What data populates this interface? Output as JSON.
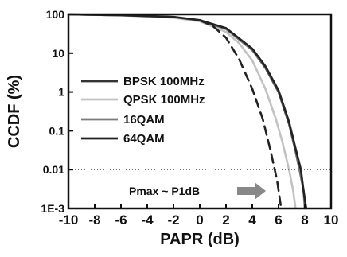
{
  "chart_data": {
    "type": "line",
    "title": "",
    "xlabel": "PAPR (dB)",
    "ylabel": "CCDF (%)",
    "xlim": [
      -10,
      10
    ],
    "ylim": [
      0.001,
      100
    ],
    "yscale": "log",
    "xticks": [
      -10,
      -8,
      -6,
      -4,
      -2,
      0,
      2,
      4,
      6,
      8,
      10
    ],
    "yticks": [
      {
        "value": 100,
        "label": "100"
      },
      {
        "value": 10,
        "label": "10"
      },
      {
        "value": 1,
        "label": "1"
      },
      {
        "value": 0.1,
        "label": "0.1"
      },
      {
        "value": 0.01,
        "label": "0.01"
      },
      {
        "value": 0.001,
        "label": "1E-3"
      }
    ],
    "grid": false,
    "legend_position": "middle-left",
    "series": [
      {
        "name": "BPSK 100MHz",
        "color": "#333333",
        "style": "solid",
        "points": [
          [
            -10,
            100
          ],
          [
            -6,
            95
          ],
          [
            -2,
            85
          ],
          [
            0,
            70
          ],
          [
            2,
            42
          ],
          [
            4,
            12
          ],
          [
            5,
            4.2
          ],
          [
            6,
            1.0
          ],
          [
            6.8,
            0.15
          ],
          [
            7.3,
            0.03
          ],
          [
            7.6,
            0.01
          ],
          [
            7.9,
            0.003
          ],
          [
            8.1,
            0.001
          ]
        ]
      },
      {
        "name": "QPSK 100MHz",
        "color": "#c2c2c2",
        "style": "solid",
        "points": [
          [
            -10,
            100
          ],
          [
            -6,
            94
          ],
          [
            -2,
            82
          ],
          [
            0,
            66
          ],
          [
            2,
            35
          ],
          [
            3,
            18
          ],
          [
            4,
            6.5
          ],
          [
            5,
            1.2
          ],
          [
            5.8,
            0.2
          ],
          [
            6.3,
            0.05
          ],
          [
            6.8,
            0.01
          ],
          [
            7.1,
            0.003
          ],
          [
            7.3,
            0.001
          ]
        ]
      },
      {
        "name": "16QAM",
        "color": "#7a7a7a",
        "style": "solid",
        "points": [
          [
            -10,
            100
          ],
          [
            -6,
            95
          ],
          [
            -2,
            85
          ],
          [
            0,
            70
          ],
          [
            2,
            42
          ],
          [
            4,
            12
          ],
          [
            5,
            4.4
          ],
          [
            6,
            1.05
          ],
          [
            6.8,
            0.16
          ],
          [
            7.3,
            0.033
          ],
          [
            7.6,
            0.011
          ],
          [
            7.9,
            0.003
          ],
          [
            8.0,
            0.001
          ]
        ]
      },
      {
        "name": "64QAM",
        "color": "#222222",
        "style": "solid",
        "points": [
          [
            -10,
            100
          ],
          [
            -6,
            95
          ],
          [
            -2,
            86
          ],
          [
            0,
            71
          ],
          [
            2,
            44
          ],
          [
            4,
            13
          ],
          [
            5,
            4.6
          ],
          [
            6,
            1.1
          ],
          [
            6.8,
            0.17
          ],
          [
            7.3,
            0.035
          ],
          [
            7.7,
            0.01
          ],
          [
            7.9,
            0.003
          ],
          [
            8.1,
            0.001
          ]
        ]
      },
      {
        "name": "",
        "color": "#222222",
        "style": "dashed",
        "points": [
          [
            0,
            70
          ],
          [
            1,
            50
          ],
          [
            2,
            25
          ],
          [
            3,
            7
          ],
          [
            4,
            1.2
          ],
          [
            4.8,
            0.2
          ],
          [
            5.4,
            0.03
          ],
          [
            5.9,
            0.005
          ],
          [
            6.2,
            0.001
          ]
        ]
      }
    ],
    "reference_line": {
      "y": 0.01,
      "style": "dotted"
    },
    "annotation": {
      "text": "Pmax ~ P1dB",
      "arrow_color": "#888888"
    }
  }
}
